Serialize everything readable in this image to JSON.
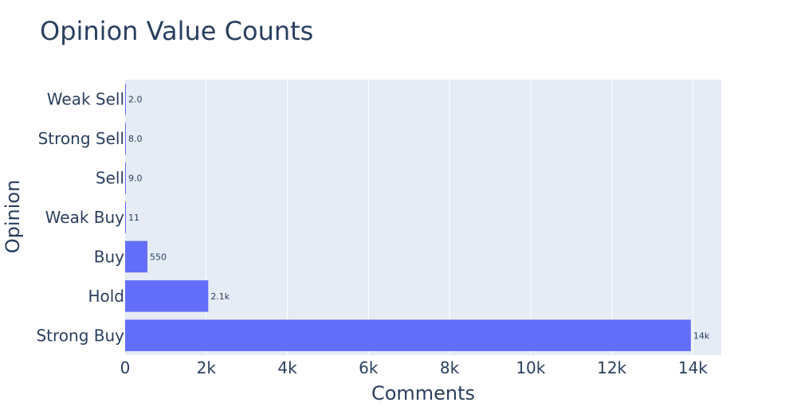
{
  "chart_data": {
    "type": "bar",
    "orientation": "horizontal",
    "title": "Opinion Value Counts",
    "xlabel": "Comments",
    "ylabel": "Opinion",
    "categories": [
      "Strong Buy",
      "Hold",
      "Buy",
      "Weak Buy",
      "Sell",
      "Strong Sell",
      "Weak Sell"
    ],
    "values": [
      13950,
      2050,
      550,
      11,
      9,
      8,
      2
    ],
    "data_labels": [
      "14k",
      "2.1k",
      "550",
      "11",
      "9.0",
      "8.0",
      "2.0"
    ],
    "xlim": [
      0,
      14700
    ],
    "xticks": [
      0,
      2000,
      4000,
      6000,
      8000,
      10000,
      12000,
      14000
    ],
    "xtick_labels": [
      "0",
      "2k",
      "4k",
      "6k",
      "8k",
      "10k",
      "12k",
      "14k"
    ],
    "grid": true,
    "colors": {
      "bar": "#636efa",
      "plot_bg": "#e5ecf6",
      "grid": "#ffffff",
      "text": "#2a3f5f"
    }
  }
}
